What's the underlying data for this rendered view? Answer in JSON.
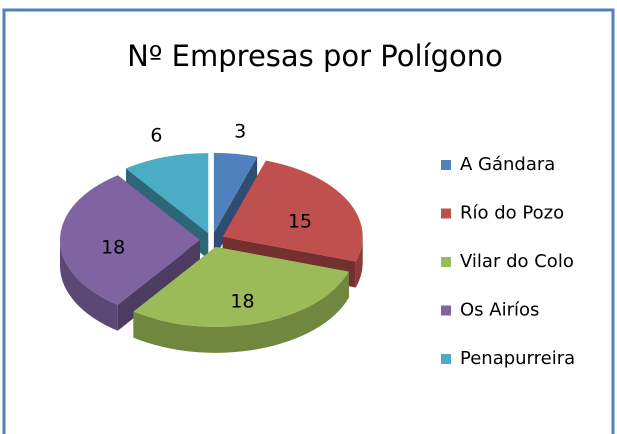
{
  "chart_data": {
    "type": "pie3d",
    "title": "Nº Empresas por Polígono",
    "categories": [
      "A Gándara",
      "Río do Pozo",
      "Vilar do Colo",
      "Os Airíos",
      "Penapurreira"
    ],
    "values": [
      3,
      15,
      18,
      18,
      6
    ],
    "colors": [
      "#4f81bd",
      "#c0504d",
      "#9bbb59",
      "#8064a2",
      "#4bacc6"
    ],
    "legend": "right"
  }
}
